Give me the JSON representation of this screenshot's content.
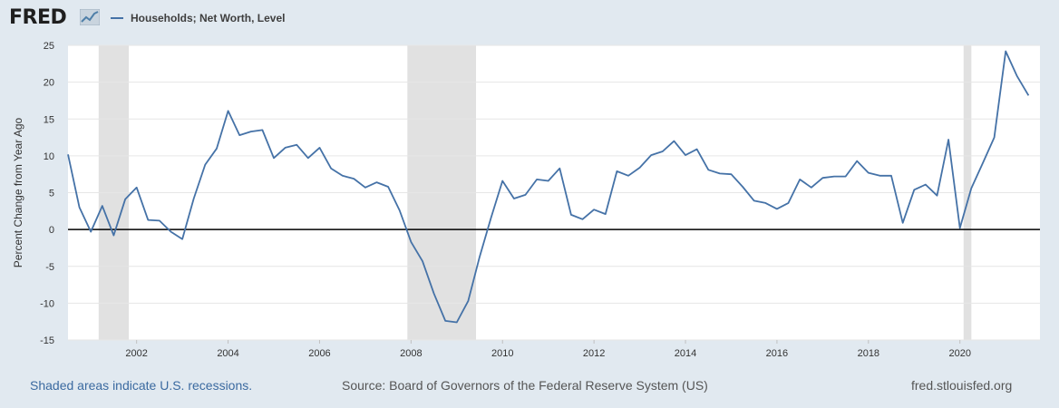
{
  "header": {
    "logo_text": "FRED",
    "legend_label": "Households; Net Worth, Level"
  },
  "colors": {
    "line": "#4572a7",
    "recession": "#e1e1e1",
    "grid": "#e6e6e6",
    "zero_line": "#000000",
    "background": "#e1e9f0",
    "plot_bg": "#ffffff"
  },
  "footer": {
    "recession_note": "Shaded areas indicate U.S. recessions.",
    "source": "Source: Board of Governors of the Federal Reserve System (US)",
    "site": "fred.stlouisfed.org"
  },
  "chart_data": {
    "type": "line",
    "title": "Households; Net Worth, Level",
    "xlabel": "",
    "ylabel": "Percent Change from Year Ago",
    "xlim": [
      2000.5,
      2021.75
    ],
    "ylim": [
      -15,
      25
    ],
    "yticks": [
      25,
      20,
      15,
      10,
      5,
      0,
      -5,
      -10,
      -15
    ],
    "xticks": [
      "2002",
      "2004",
      "2006",
      "2008",
      "2010",
      "2012",
      "2014",
      "2016",
      "2018",
      "2020"
    ],
    "xtick_values": [
      2002,
      2004,
      2006,
      2008,
      2010,
      2012,
      2014,
      2016,
      2018,
      2020
    ],
    "grid": true,
    "recessions": [
      {
        "start": 2001.17,
        "end": 2001.83
      },
      {
        "start": 2007.92,
        "end": 2009.42
      },
      {
        "start": 2020.08,
        "end": 2020.25
      }
    ],
    "series": [
      {
        "name": "Households; Net Worth, Level",
        "x": [
          2000.5,
          2000.75,
          2001.0,
          2001.25,
          2001.5,
          2001.75,
          2002.0,
          2002.25,
          2002.5,
          2002.75,
          2003.0,
          2003.25,
          2003.5,
          2003.75,
          2004.0,
          2004.25,
          2004.5,
          2004.75,
          2005.0,
          2005.25,
          2005.5,
          2005.75,
          2006.0,
          2006.25,
          2006.5,
          2006.75,
          2007.0,
          2007.25,
          2007.5,
          2007.75,
          2008.0,
          2008.25,
          2008.5,
          2008.75,
          2009.0,
          2009.25,
          2009.5,
          2009.75,
          2010.0,
          2010.25,
          2010.5,
          2010.75,
          2011.0,
          2011.25,
          2011.5,
          2011.75,
          2012.0,
          2012.25,
          2012.5,
          2012.75,
          2013.0,
          2013.25,
          2013.5,
          2013.75,
          2014.0,
          2014.25,
          2014.5,
          2014.75,
          2015.0,
          2015.25,
          2015.5,
          2015.75,
          2016.0,
          2016.25,
          2016.5,
          2016.75,
          2017.0,
          2017.25,
          2017.5,
          2017.75,
          2018.0,
          2018.25,
          2018.5,
          2018.75,
          2019.0,
          2019.25,
          2019.5,
          2019.75,
          2020.0,
          2020.25,
          2020.5,
          2020.75,
          2021.0,
          2021.25,
          2021.5
        ],
        "values": [
          10.2,
          3.0,
          -0.3,
          3.2,
          -0.8,
          4.1,
          5.7,
          1.3,
          1.2,
          -0.3,
          -1.3,
          4.2,
          8.8,
          11.0,
          16.1,
          12.8,
          13.3,
          13.5,
          9.7,
          11.1,
          11.5,
          9.7,
          11.1,
          8.3,
          7.3,
          6.9,
          5.7,
          6.4,
          5.8,
          2.6,
          -1.7,
          -4.3,
          -8.7,
          -12.4,
          -12.6,
          -9.7,
          -3.7,
          1.6,
          6.6,
          4.2,
          4.7,
          6.8,
          6.6,
          8.3,
          2.0,
          1.4,
          2.7,
          2.1,
          7.9,
          7.3,
          8.4,
          10.1,
          10.6,
          12.0,
          10.1,
          10.9,
          8.1,
          7.6,
          7.5,
          5.8,
          3.9,
          3.6,
          2.8,
          3.6,
          6.8,
          5.7,
          7.0,
          7.2,
          7.2,
          9.3,
          7.7,
          7.3,
          7.3,
          0.9,
          5.4,
          6.1,
          4.6,
          12.2,
          0.2,
          5.6,
          9.0,
          12.5,
          24.2,
          20.8,
          18.2
        ]
      }
    ]
  }
}
